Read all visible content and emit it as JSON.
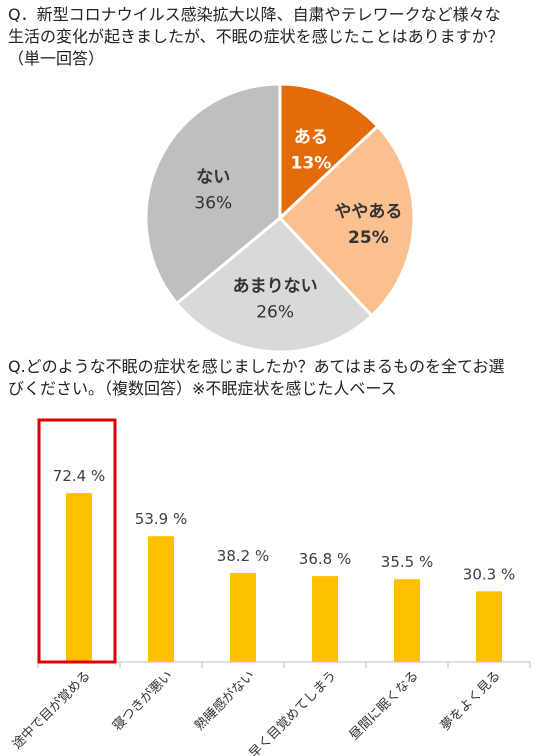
{
  "question1": {
    "line1": "Q．新型コロナウイルス感染拡大以降、自粛やテレワークなど様々な",
    "line2": "生活の変化が起きましたが、不眠の症状を感じたことはありますか？",
    "line3": "（単一回答）"
  },
  "question2": {
    "line1": "Q.どのような不眠の症状を感じましたか？あてはまるものを全てお選",
    "line2": "びください。（複数回答）※不眠症状を感じた人ベース"
  },
  "chart_data": [
    {
      "type": "pie",
      "slices": [
        {
          "label": "ある",
          "value": 13,
          "pct_text": "13%",
          "color": "#e36c0a",
          "label_color": "#ffffff",
          "bold": true
        },
        {
          "label": "ややある",
          "value": 25,
          "pct_text": "25%",
          "color": "#fac090",
          "label_color": "#333333",
          "bold": true
        },
        {
          "label": "あまりない",
          "value": 26,
          "pct_text": "26%",
          "color": "#d9d9d9",
          "label_color": "#333333",
          "bold": false
        },
        {
          "label": "ない",
          "value": 36,
          "pct_text": "36%",
          "color": "#bfbfbf",
          "label_color": "#333333",
          "bold": false
        }
      ],
      "start_angle_deg": 0,
      "direction": "clockwise"
    },
    {
      "type": "bar",
      "categories": [
        "途中で目が覚める",
        "寝つきが悪い",
        "熟睡感がない",
        "早く目覚めてしまう",
        "昼間に眠くなる",
        "夢をよく見る"
      ],
      "values": [
        72.4,
        53.9,
        38.2,
        36.8,
        35.5,
        30.3
      ],
      "value_labels": [
        "72.4 %",
        "53.9 %",
        "38.2 %",
        "36.8 %",
        "35.5 %",
        "30.3 %"
      ],
      "bar_color": "#ffc000",
      "highlight_color": "#e00000",
      "highlight_index": 0,
      "ylim": [
        0,
        90
      ],
      "grid": false
    }
  ]
}
